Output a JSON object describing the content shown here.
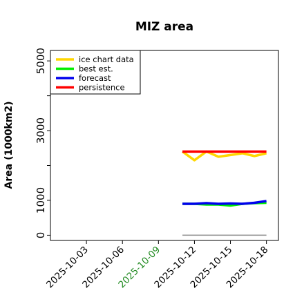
{
  "chart_data": {
    "type": "line",
    "title": "MIZ area",
    "xlabel": "",
    "ylabel": "Area (1000km2)",
    "ylim": [
      -150,
      5300
    ],
    "xlim": [
      "2025-09-30",
      "2025-10-19"
    ],
    "yticks": [
      0,
      1000,
      2000,
      3000,
      4000,
      5000
    ],
    "ytick_labels": [
      "0",
      "1000",
      "",
      "3000",
      "",
      "5000"
    ],
    "xticks": [
      "2025-10-03",
      "2025-10-06",
      "2025-10-09",
      "2025-10-12",
      "2025-10-15",
      "2025-10-18"
    ],
    "highlight_tick": "2025-10-09",
    "highlight_color": "#228b22",
    "grid": false,
    "legend_position": "top-left",
    "series": [
      {
        "name": "ice chart data",
        "color": "#ffd700",
        "x": [
          "2025-10-11",
          "2025-10-12",
          "2025-10-13",
          "2025-10-14",
          "2025-10-15",
          "2025-10-16",
          "2025-10-17",
          "2025-10-18"
        ],
        "y": [
          2400,
          2150,
          2400,
          2250,
          2300,
          2350,
          2270,
          2350
        ]
      },
      {
        "name": "best est.",
        "color": "#00ee00",
        "x": [
          "2025-10-11",
          "2025-10-12",
          "2025-10-13",
          "2025-10-14",
          "2025-10-15",
          "2025-10-16",
          "2025-10-17",
          "2025-10-18"
        ],
        "y": [
          900,
          900,
          880,
          880,
          850,
          900,
          920,
          930
        ]
      },
      {
        "name": "forecast",
        "color": "#0000ee",
        "x": [
          "2025-10-11",
          "2025-10-12",
          "2025-10-13",
          "2025-10-14",
          "2025-10-15",
          "2025-10-16",
          "2025-10-17",
          "2025-10-18"
        ],
        "y": [
          900,
          900,
          920,
          900,
          910,
          900,
          930,
          980
        ]
      },
      {
        "name": "persistence",
        "color": "#ff0000",
        "x": [
          "2025-10-11",
          "2025-10-18"
        ],
        "y": [
          2400,
          2400
        ]
      }
    ],
    "baseline": {
      "color": "#888888",
      "x": [
        "2025-10-11",
        "2025-10-18"
      ],
      "y": [
        0,
        0
      ]
    }
  }
}
